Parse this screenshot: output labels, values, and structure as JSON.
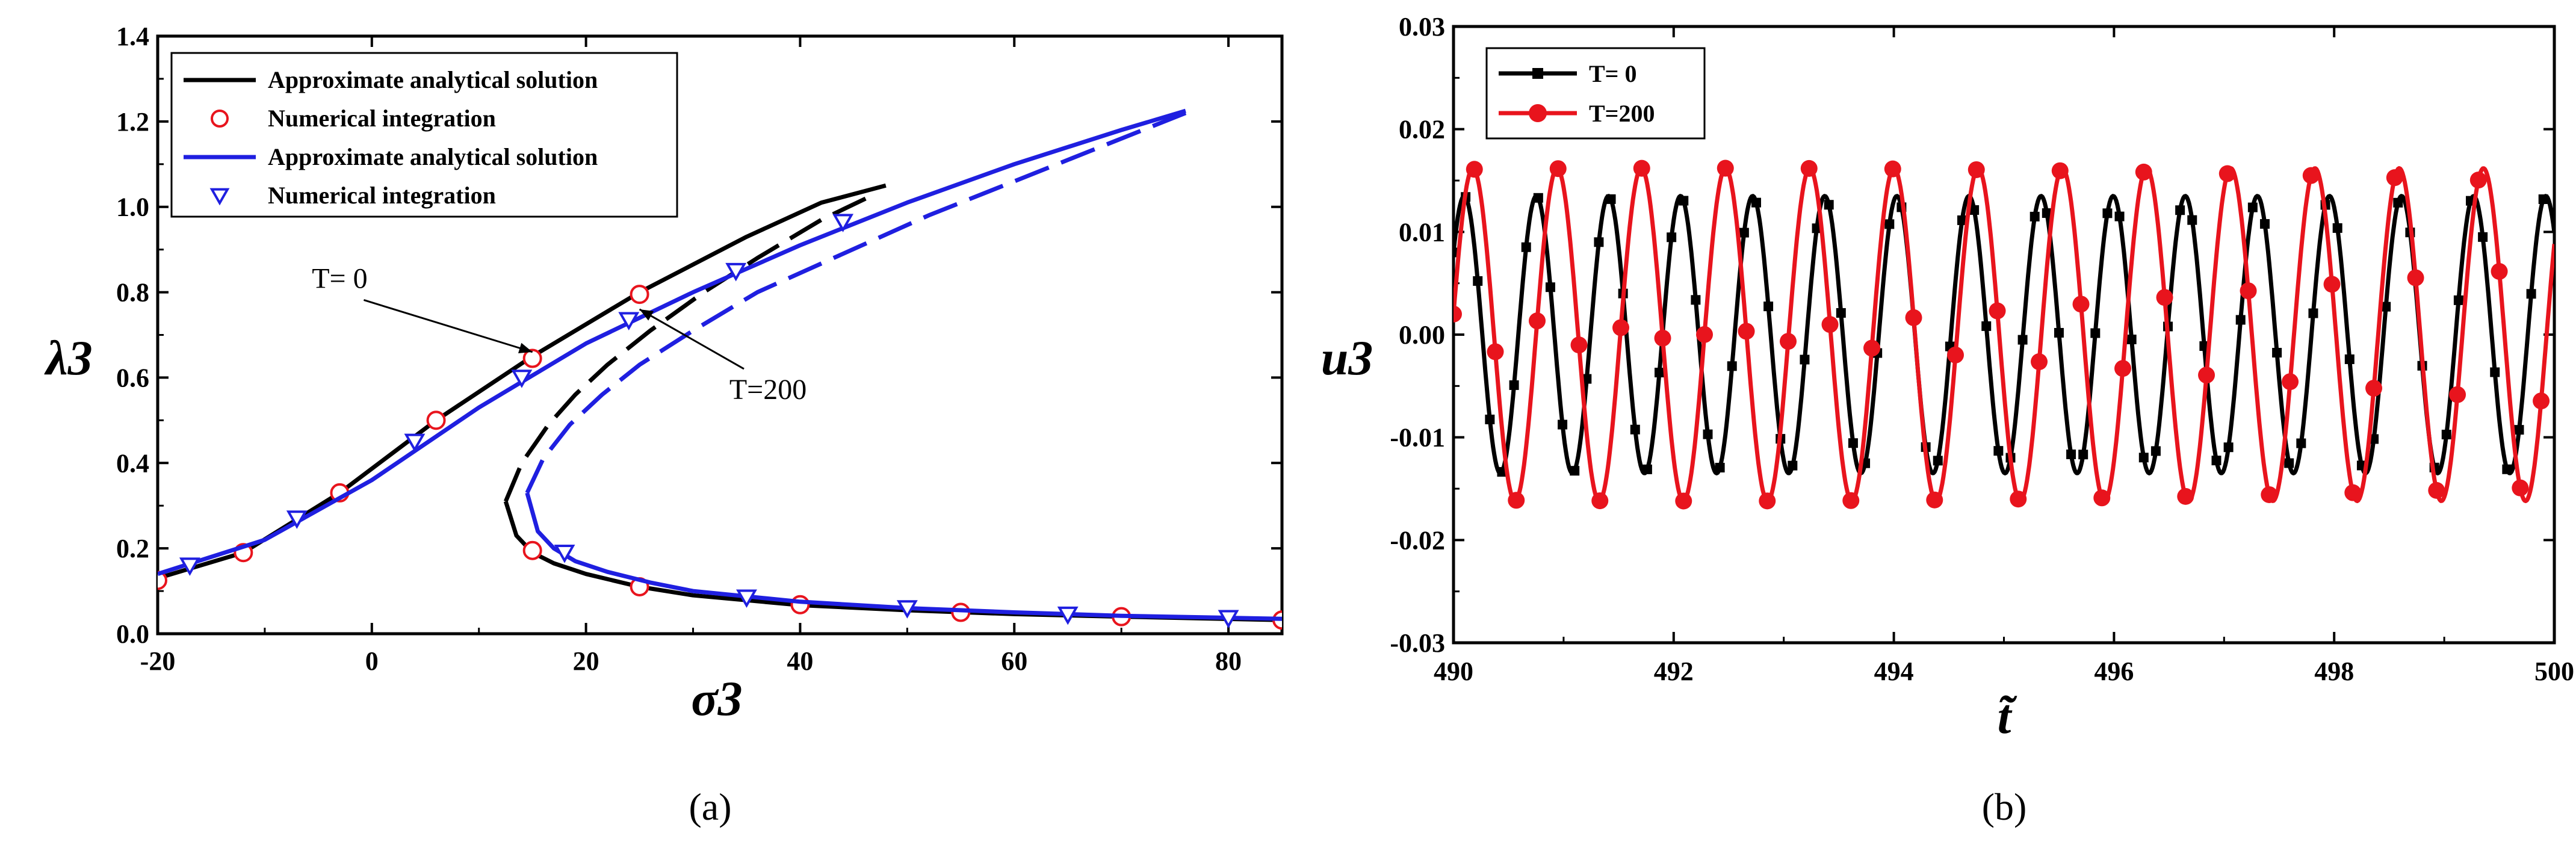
{
  "chart_data": [
    {
      "id": "a",
      "type": "line",
      "caption": "(a)",
      "xlabel": "σ3",
      "ylabel": "λ3",
      "xlim": [
        -20,
        85
      ],
      "ylim": [
        0,
        1.4
      ],
      "xticks": [
        -20,
        0,
        20,
        40,
        60,
        80
      ],
      "yticks": [
        0.0,
        0.2,
        0.4,
        0.6,
        0.8,
        1.0,
        1.2,
        1.4
      ],
      "legend": [
        {
          "label": "Approximate analytical solution",
          "color": "#000000",
          "marker": "line"
        },
        {
          "label": "Numerical integration",
          "color": "#e8141d",
          "marker": "circle"
        },
        {
          "label": "Approximate analytical solution",
          "color": "#1f1fe0",
          "marker": "line"
        },
        {
          "label": "Numerical integration",
          "color": "#1f1fe0",
          "marker": "triangle"
        }
      ],
      "annotations": [
        {
          "text": "T= 0",
          "at": [
            -3,
            0.81
          ],
          "arrow_to": [
            15,
            0.66
          ]
        },
        {
          "text": "T=200",
          "at": [
            37,
            0.55
          ],
          "arrow_to": [
            25,
            0.76
          ]
        }
      ],
      "series": [
        {
          "name": "T=0 analytic stable",
          "color": "#000000",
          "style": "solid",
          "x": [
            -20,
            -12,
            -3,
            6,
            15,
            25,
            35,
            42,
            48
          ],
          "y": [
            0.13,
            0.19,
            0.33,
            0.5,
            0.65,
            0.8,
            0.93,
            1.01,
            1.05
          ]
        },
        {
          "name": "T=0 analytic unstable",
          "color": "#000000",
          "style": "dashed",
          "x": [
            12.5,
            14.0,
            16.5,
            19.0,
            22.0,
            26.0,
            31.0,
            36.0,
            42.0,
            47.0
          ],
          "y": [
            0.31,
            0.4,
            0.49,
            0.56,
            0.63,
            0.71,
            0.8,
            0.88,
            0.97,
            1.03
          ]
        },
        {
          "name": "T=0 analytic lower",
          "color": "#000000",
          "style": "solid",
          "x": [
            12.5,
            13.5,
            15.0,
            17.0,
            20.0,
            25.0,
            30.0,
            40.0,
            50.0,
            60.0,
            70.0,
            85.0
          ],
          "y": [
            0.31,
            0.23,
            0.19,
            0.165,
            0.14,
            0.11,
            0.09,
            0.067,
            0.055,
            0.046,
            0.04,
            0.032
          ]
        },
        {
          "name": "T=0 numerical",
          "color": "#e8141d",
          "marker": "circle",
          "x": [
            -20,
            -12,
            -3,
            6,
            15,
            25,
            15,
            25,
            40,
            55,
            70,
            85
          ],
          "y": [
            0.125,
            0.19,
            0.33,
            0.5,
            0.645,
            0.795,
            0.195,
            0.11,
            0.068,
            0.05,
            0.04,
            0.032
          ]
        },
        {
          "name": "T=200 analytic stable",
          "color": "#1f1fe0",
          "style": "solid",
          "x": [
            -20,
            -10,
            0,
            10,
            20,
            30,
            40,
            50,
            60,
            70,
            76
          ],
          "y": [
            0.14,
            0.22,
            0.36,
            0.53,
            0.68,
            0.8,
            0.91,
            1.01,
            1.1,
            1.18,
            1.225
          ]
        },
        {
          "name": "T=200 analytic unstable",
          "color": "#1f1fe0",
          "style": "dashed",
          "x": [
            14.5,
            16.0,
            18.5,
            21.5,
            25.0,
            30.0,
            36.0,
            44.0,
            52.0,
            60.0,
            68.0,
            76.0
          ],
          "y": [
            0.33,
            0.41,
            0.49,
            0.56,
            0.63,
            0.71,
            0.8,
            0.89,
            0.98,
            1.06,
            1.14,
            1.22
          ]
        },
        {
          "name": "T=200 analytic lower",
          "color": "#1f1fe0",
          "style": "solid",
          "x": [
            14.5,
            15.5,
            17.0,
            19.0,
            22.0,
            26.0,
            30.0,
            40.0,
            50.0,
            60.0,
            70.0,
            85.0
          ],
          "y": [
            0.33,
            0.24,
            0.2,
            0.17,
            0.145,
            0.12,
            0.1,
            0.075,
            0.06,
            0.05,
            0.042,
            0.035
          ]
        },
        {
          "name": "T=200 numerical",
          "color": "#1f1fe0",
          "marker": "triangle",
          "x": [
            -17,
            -7,
            4,
            14,
            24,
            34,
            44,
            18,
            35,
            50,
            65,
            80
          ],
          "y": [
            0.16,
            0.27,
            0.45,
            0.6,
            0.735,
            0.85,
            0.965,
            0.19,
            0.085,
            0.06,
            0.045,
            0.037
          ]
        }
      ]
    },
    {
      "id": "b",
      "type": "line",
      "caption": "(b)",
      "xlabel": "t̃",
      "ylabel": "u3",
      "xlim": [
        490,
        500
      ],
      "ylim": [
        -0.03,
        0.03
      ],
      "xticks": [
        490,
        492,
        494,
        496,
        498,
        500
      ],
      "yticks": [
        -0.03,
        -0.02,
        -0.01,
        0.0,
        0.01,
        0.02,
        0.03
      ],
      "ytick_labels": [
        "-0.03",
        "-0.02",
        "-0.01",
        "0.00",
        "0.01",
        "0.02",
        "0.03"
      ],
      "legend": [
        {
          "label": "T= 0",
          "color": "#000000",
          "marker": "square"
        },
        {
          "label": "T=200",
          "color": "#e8141d",
          "marker": "circle"
        }
      ],
      "series": [
        {
          "name": "T= 0",
          "color": "#000000",
          "marker": "square",
          "function": "sine",
          "amplitude": 0.0135,
          "period": 0.655,
          "start_value": 0.008,
          "marker_step": 0.11
        },
        {
          "name": "T=200",
          "color": "#e8141d",
          "marker": "circle",
          "function": "sine",
          "amplitude": 0.0162,
          "period": 0.765,
          "start_value": 0.002,
          "marker_step": 0.19
        }
      ]
    }
  ]
}
